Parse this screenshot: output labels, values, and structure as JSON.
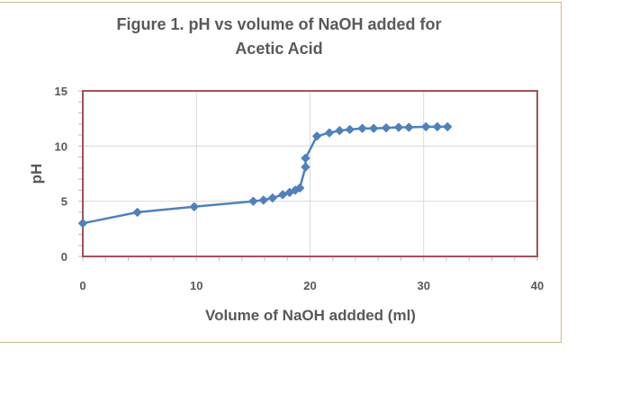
{
  "chart_data": {
    "type": "line",
    "title": "Figure 1. pH vs volume of NaOH added for Acetic Acid",
    "title_lines": [
      "Figure 1. pH vs volume of NaOH added for",
      "Acetic Acid"
    ],
    "xlabel": "Volume of NaOH addded (ml)",
    "ylabel": "pH",
    "xlim": [
      0,
      40
    ],
    "ylim": [
      0,
      15
    ],
    "x_ticks": [
      0,
      10,
      20,
      30,
      40
    ],
    "y_ticks": [
      0,
      5,
      10,
      15
    ],
    "x_minor_step": 2,
    "y_minor_step": 1,
    "grid": {
      "x": true,
      "y": true
    },
    "legend": null,
    "series": [
      {
        "name": "pH",
        "color": "#4F81BD",
        "marker": "diamond",
        "x": [
          0,
          4.8,
          9.8,
          15.0,
          15.9,
          16.7,
          17.6,
          18.2,
          18.7,
          19.1,
          19.6,
          19.6,
          20.6,
          21.7,
          22.6,
          23.5,
          24.6,
          25.6,
          26.7,
          27.8,
          28.7,
          30.2,
          31.2,
          32.1
        ],
        "y": [
          3.0,
          4.0,
          4.5,
          5.0,
          5.1,
          5.3,
          5.6,
          5.8,
          6.0,
          6.2,
          8.1,
          8.9,
          10.9,
          11.2,
          11.4,
          11.5,
          11.6,
          11.6,
          11.65,
          11.7,
          11.7,
          11.75,
          11.75,
          11.75
        ]
      }
    ]
  },
  "colors": {
    "plot_border": "#A0525A",
    "frame_border": "#D2B48C",
    "gridline": "#D9D9D9",
    "text": "#595959",
    "series": "#4F81BD"
  }
}
